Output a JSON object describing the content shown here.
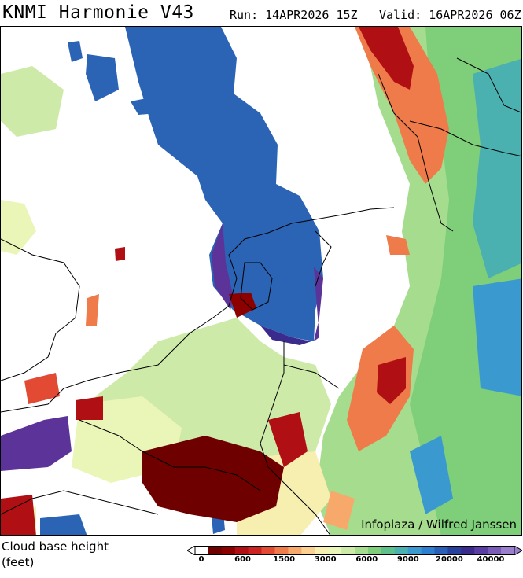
{
  "header": {
    "title": "KNMI Harmonie V43",
    "run": "Run: 14APR2026 15Z",
    "valid": "Valid: 16APR2026 06Z"
  },
  "map": {
    "credit": "Infoplaza / Wilfred Janssen"
  },
  "legend": {
    "label_line1": "Cloud base height",
    "label_line2": "(feet)",
    "colors": [
      "#ffffff",
      "#6e0000",
      "#8c0000",
      "#b00f14",
      "#cc2222",
      "#e34a33",
      "#f07b4a",
      "#f6a96a",
      "#fbd090",
      "#f7efb0",
      "#eaf5b8",
      "#cdeaa8",
      "#a6dc8e",
      "#7fcf7a",
      "#5ec08a",
      "#4bb0b0",
      "#3a9ad0",
      "#2f7fd0",
      "#2a5fb8",
      "#27409c",
      "#3b2b8c",
      "#5a3ea6",
      "#7a5cb8",
      "#9a80cc"
    ],
    "ticks": [
      "0",
      "600",
      "1500",
      "3000",
      "6000",
      "9000",
      "20000",
      "40000"
    ]
  }
}
